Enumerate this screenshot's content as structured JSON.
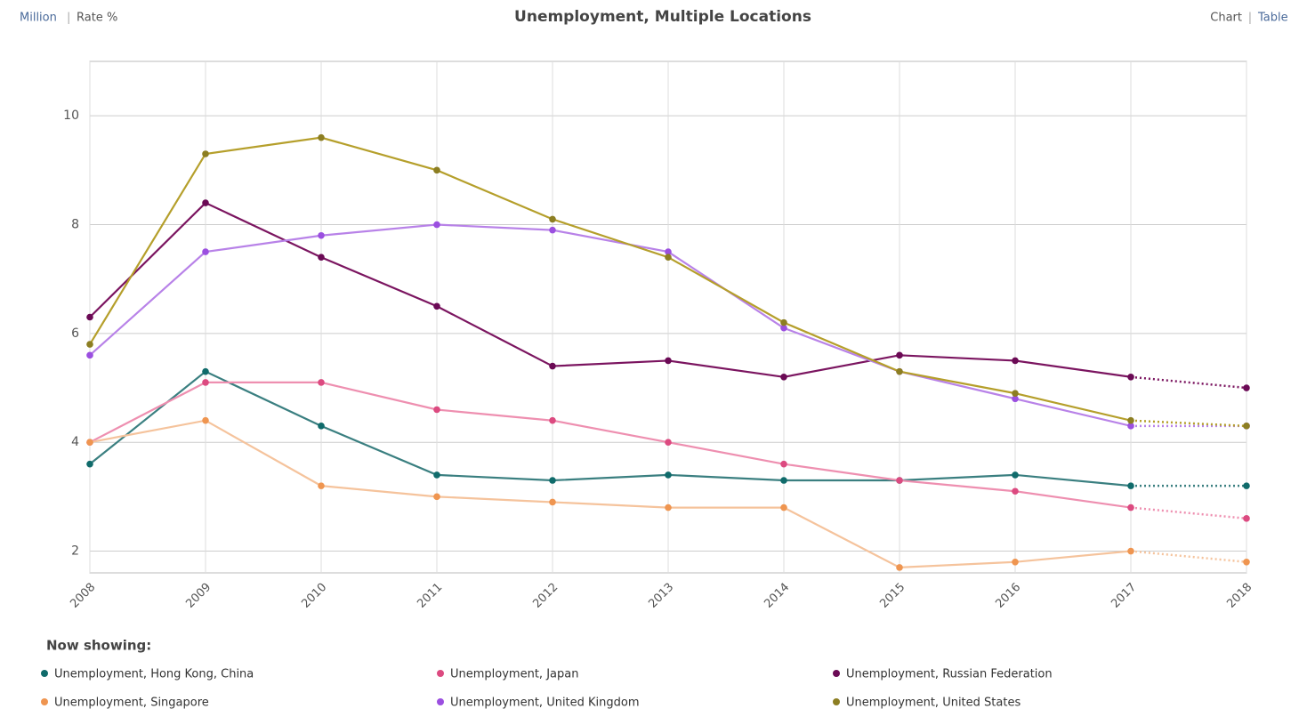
{
  "header": {
    "units": [
      "Million",
      "Rate %"
    ],
    "views": [
      "Chart",
      "Table"
    ]
  },
  "chart_data": {
    "type": "line",
    "title": "Unemployment, Multiple Locations",
    "x": [
      2008,
      2009,
      2010,
      2011,
      2012,
      2013,
      2014,
      2015,
      2016,
      2017,
      2018
    ],
    "xlim": [
      2008,
      2018
    ],
    "xticks": [
      2008,
      2009,
      2010,
      2011,
      2012,
      2013,
      2014,
      2015,
      2016,
      2017,
      2018
    ],
    "ylim": [
      1.6,
      11
    ],
    "yticks": [
      2,
      4,
      6,
      8,
      10
    ],
    "grid": true,
    "dotted_from": 2017,
    "legend_title": "Now showing:",
    "series": [
      {
        "name": "Unemployment, Hong Kong, China",
        "color": "#3a7f80",
        "marker_color": "#106b6b",
        "values": [
          3.6,
          5.3,
          4.3,
          3.4,
          3.3,
          3.4,
          3.3,
          3.3,
          3.4,
          3.2,
          3.2
        ]
      },
      {
        "name": "Unemployment, Japan",
        "color": "#ee8fb0",
        "marker_color": "#dc4a80",
        "values": [
          4.0,
          5.1,
          5.1,
          4.6,
          4.4,
          4.0,
          3.6,
          3.3,
          3.1,
          2.8,
          2.6
        ]
      },
      {
        "name": "Unemployment, Russian Federation",
        "color": "#7b1560",
        "marker_color": "#6b0a55",
        "values": [
          6.3,
          8.4,
          7.4,
          6.5,
          5.4,
          5.5,
          5.2,
          5.6,
          5.5,
          5.2,
          5.0
        ]
      },
      {
        "name": "Unemployment, Singapore",
        "color": "#f5c39c",
        "marker_color": "#ef9550",
        "values": [
          4.0,
          4.4,
          3.2,
          3.0,
          2.9,
          2.8,
          2.8,
          1.7,
          1.8,
          2.0,
          1.8
        ]
      },
      {
        "name": "Unemployment, United Kingdom",
        "color": "#b882e8",
        "marker_color": "#9b4fe0",
        "values": [
          5.6,
          7.5,
          7.8,
          8.0,
          7.9,
          7.5,
          6.1,
          5.3,
          4.8,
          4.3,
          4.3
        ]
      },
      {
        "name": "Unemployment, United States",
        "color": "#b59f2b",
        "marker_color": "#8c7e22",
        "values": [
          5.8,
          9.3,
          9.6,
          9.0,
          8.1,
          7.4,
          6.2,
          5.3,
          4.9,
          4.4,
          4.3
        ]
      }
    ]
  }
}
